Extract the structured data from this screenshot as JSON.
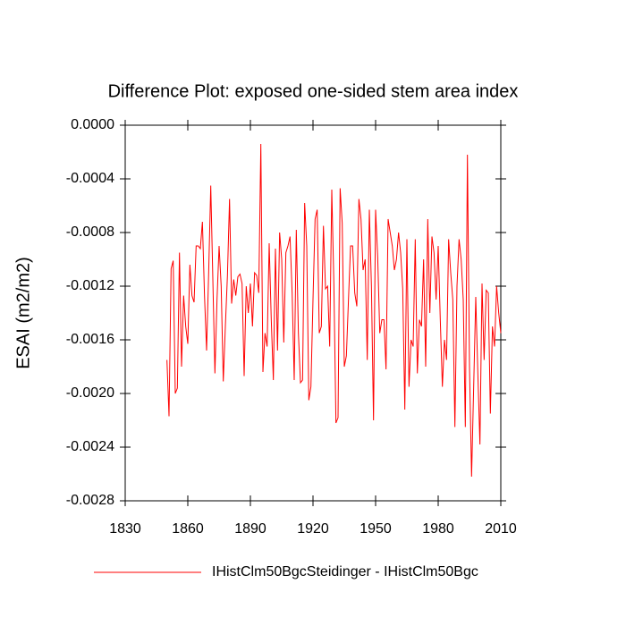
{
  "chart_data": {
    "type": "line",
    "title": "Difference Plot: exposed one-sided stem area index",
    "y_label": "ESAI  (m2/m2)",
    "xlim": [
      1830,
      2010
    ],
    "xticks": [
      1830,
      1860,
      1890,
      1920,
      1950,
      1980,
      2010
    ],
    "ylim": [
      -0.0028,
      0
    ],
    "yticks": [
      {
        "value": -0.0028,
        "label": "-0.0028"
      },
      {
        "value": -0.0024,
        "label": "-0.0024"
      },
      {
        "value": -0.002,
        "label": "-0.0020"
      },
      {
        "value": -0.0016,
        "label": "-0.0016"
      },
      {
        "value": -0.0012,
        "label": "-0.0012"
      },
      {
        "value": -0.0008,
        "label": "-0.0008"
      },
      {
        "value": -0.0004,
        "label": "-0.0004"
      },
      {
        "value": 0,
        "label": "0.0000"
      }
    ],
    "x": [
      1850,
      1851,
      1852,
      1853,
      1854,
      1855,
      1856,
      1857,
      1858,
      1859,
      1860,
      1861,
      1862,
      1863,
      1864,
      1865,
      1866,
      1867,
      1868,
      1869,
      1870,
      1871,
      1872,
      1873,
      1874,
      1875,
      1876,
      1877,
      1878,
      1879,
      1880,
      1881,
      1882,
      1883,
      1884,
      1885,
      1886,
      1887,
      1888,
      1889,
      1890,
      1891,
      1892,
      1893,
      1894,
      1895,
      1896,
      1897,
      1898,
      1899,
      1900,
      1901,
      1902,
      1903,
      1904,
      1905,
      1906,
      1907,
      1908,
      1909,
      1910,
      1911,
      1912,
      1913,
      1914,
      1915,
      1916,
      1917,
      1918,
      1919,
      1920,
      1921,
      1922,
      1923,
      1924,
      1925,
      1926,
      1927,
      1928,
      1929,
      1930,
      1931,
      1932,
      1933,
      1934,
      1935,
      1936,
      1937,
      1938,
      1939,
      1940,
      1941,
      1942,
      1943,
      1944,
      1945,
      1946,
      1947,
      1948,
      1949,
      1950,
      1951,
      1952,
      1953,
      1954,
      1955,
      1956,
      1957,
      1958,
      1959,
      1960,
      1961,
      1962,
      1963,
      1964,
      1965,
      1966,
      1967,
      1968,
      1969,
      1970,
      1971,
      1972,
      1973,
      1974,
      1975,
      1976,
      1977,
      1978,
      1979,
      1980,
      1981,
      1982,
      1983,
      1984,
      1985,
      1986,
      1987,
      1988,
      1989,
      1990,
      1991,
      1992,
      1993,
      1994,
      1995,
      1996,
      1997,
      1998,
      1999,
      2000,
      2001,
      2002,
      2003,
      2004,
      2005,
      2006,
      2007,
      2008,
      2009,
      2010
    ],
    "series": [
      {
        "name": "IHistClm50BgcSteidinger - IHistClm50Bgc",
        "color": "#ff0000",
        "values": [
          -0.00175,
          -0.00217,
          -0.00107,
          -0.00101,
          -0.002,
          -0.00196,
          -0.00095,
          -0.0018,
          -0.00127,
          -0.0015,
          -0.00163,
          -0.00104,
          -0.00127,
          -0.00132,
          -0.0009,
          -0.0009,
          -0.00092,
          -0.00072,
          -0.00127,
          -0.00168,
          -0.0011,
          -0.00045,
          -0.00115,
          -0.00185,
          -0.0013,
          -0.0009,
          -0.0012,
          -0.00191,
          -0.0015,
          -0.00112,
          -0.00055,
          -0.00133,
          -0.00115,
          -0.00127,
          -0.00113,
          -0.00111,
          -0.00118,
          -0.00187,
          -0.0012,
          -0.0014,
          -0.00118,
          -0.0015,
          -0.0011,
          -0.00112,
          -0.00125,
          -0.00014,
          -0.00184,
          -0.00155,
          -0.00165,
          -0.00088,
          -0.00145,
          -0.0019,
          -0.00092,
          -0.00168,
          -0.0008,
          -0.001,
          -0.00162,
          -0.00095,
          -0.0009,
          -0.00083,
          -0.00125,
          -0.0019,
          -0.00078,
          -0.00155,
          -0.00192,
          -0.0019,
          -0.00058,
          -0.0009,
          -0.00205,
          -0.00195,
          -0.0013,
          -0.0007,
          -0.00063,
          -0.00155,
          -0.0015,
          -0.00075,
          -0.00122,
          -0.0012,
          -0.00165,
          -0.00048,
          -0.00118,
          -0.00222,
          -0.00218,
          -0.00047,
          -0.00073,
          -0.0018,
          -0.00172,
          -0.0013,
          -0.0009,
          -0.0009,
          -0.00125,
          -0.00135,
          -0.00055,
          -0.0007,
          -0.00108,
          -0.001,
          -0.00175,
          -0.00063,
          -0.0012,
          -0.0022,
          -0.00063,
          -0.00098,
          -0.00155,
          -0.00145,
          -0.00145,
          -0.00182,
          -0.0007,
          -0.0008,
          -0.0009,
          -0.00108,
          -0.001,
          -0.0008,
          -0.00095,
          -0.00122,
          -0.00212,
          -0.00085,
          -0.00195,
          -0.0016,
          -0.00165,
          -0.00085,
          -0.00185,
          -0.00145,
          -0.0015,
          -0.001,
          -0.0018,
          -0.0007,
          -0.0014,
          -0.00083,
          -0.00095,
          -0.0013,
          -0.0009,
          -0.00145,
          -0.00195,
          -0.0016,
          -0.00175,
          -0.00085,
          -0.0011,
          -0.0013,
          -0.00225,
          -0.0012,
          -0.00085,
          -0.001,
          -0.0013,
          -0.00225,
          -0.00022,
          -0.0018,
          -0.00262,
          -0.00195,
          -0.00128,
          -0.00185,
          -0.00238,
          -0.00118,
          -0.00175,
          -0.00123,
          -0.00125,
          -0.00215,
          -0.0015,
          -0.00165,
          -0.0012,
          -0.0014,
          -0.00155
        ]
      }
    ]
  }
}
